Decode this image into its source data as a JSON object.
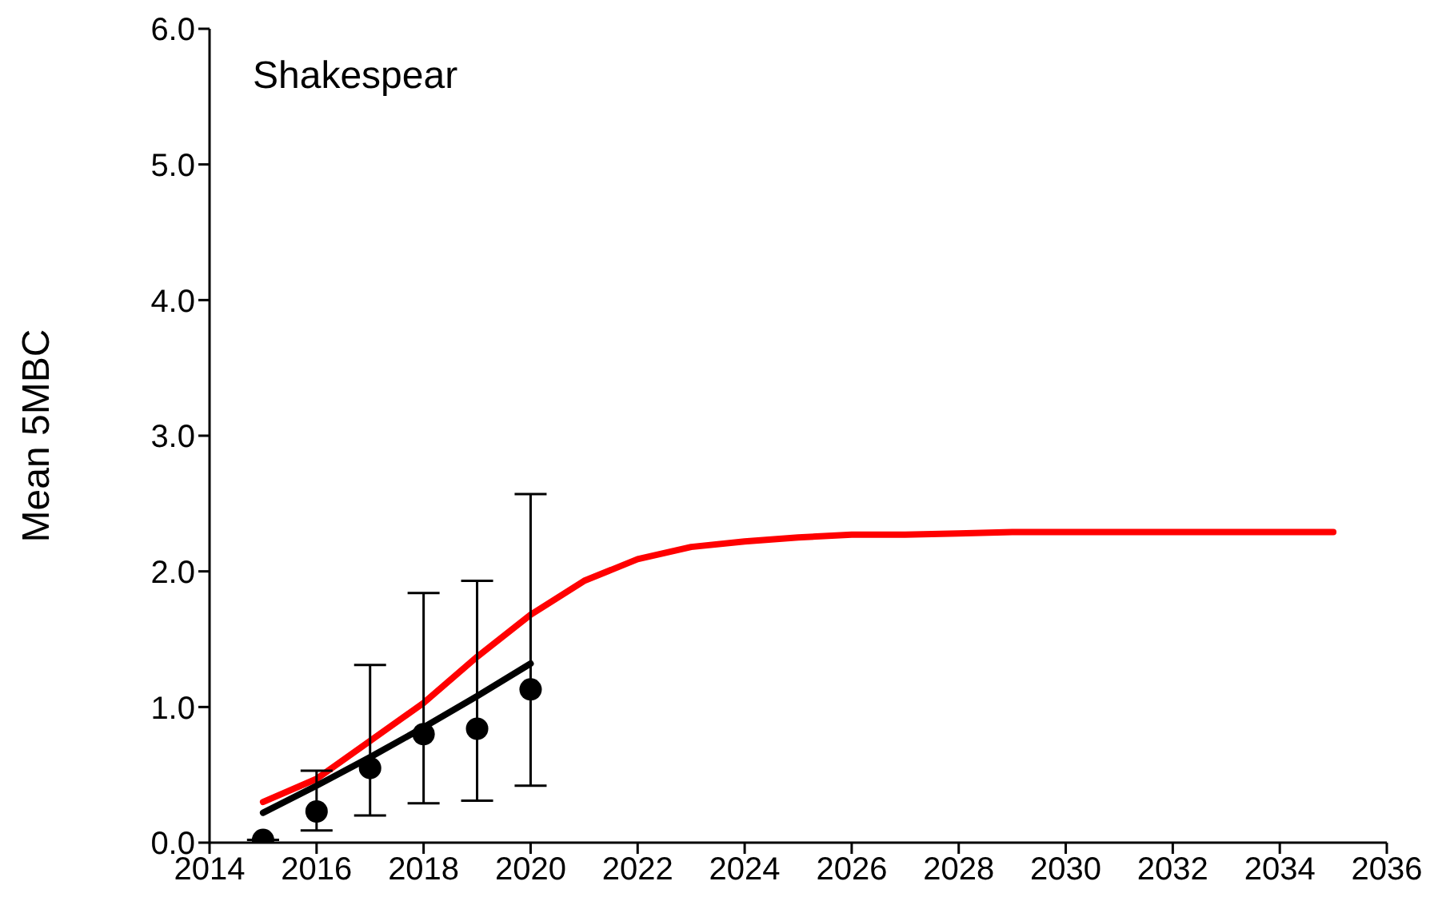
{
  "chart_data": {
    "type": "line",
    "ylabel": "Mean 5MBC",
    "annotations": [
      "Shakespear"
    ],
    "xlim": [
      2014,
      2036
    ],
    "xticks": [
      2014,
      2016,
      2018,
      2020,
      2022,
      2024,
      2026,
      2028,
      2030,
      2032,
      2034,
      2036
    ],
    "ylim": [
      0,
      6
    ],
    "yticks": [
      {
        "value": 0,
        "label": "0.0"
      },
      {
        "value": 1,
        "label": "1.0"
      },
      {
        "value": 2,
        "label": "2.0"
      },
      {
        "value": 3,
        "label": "3.0"
      },
      {
        "value": 4,
        "label": "4.0"
      },
      {
        "value": 5,
        "label": "5.0"
      },
      {
        "value": 6,
        "label": "6.0"
      }
    ],
    "grid": false,
    "legend": false,
    "line_style": "solid",
    "series": [
      {
        "color": "#ff0000",
        "marker": "none",
        "x": [
          2015,
          2016,
          2017,
          2018,
          2019,
          2020,
          2021,
          2022,
          2023,
          2024,
          2025,
          2026,
          2027,
          2028,
          2029,
          2030,
          2031,
          2032,
          2033,
          2034,
          2035
        ],
        "values": [
          0.3,
          0.47,
          0.75,
          1.03,
          1.37,
          1.68,
          1.93,
          2.09,
          2.18,
          2.22,
          2.25,
          2.27,
          2.27,
          2.28,
          2.29,
          2.29,
          2.29,
          2.29,
          2.29,
          2.29,
          2.29
        ]
      },
      {
        "color": "#000000",
        "marker": "none",
        "x": [
          2015,
          2016,
          2017,
          2018,
          2019,
          2020
        ],
        "values": [
          0.22,
          0.42,
          0.63,
          0.85,
          1.08,
          1.32
        ]
      },
      {
        "type": "scatter",
        "color": "#000000",
        "marker": "circle",
        "x": [
          2015,
          2016,
          2017,
          2018,
          2019,
          2020
        ],
        "values": [
          0.02,
          0.23,
          0.55,
          0.8,
          0.84,
          1.13
        ],
        "errors": [
          null,
          [
            0.09,
            0.53
          ],
          [
            0.2,
            1.31
          ],
          [
            0.29,
            1.84
          ],
          [
            0.31,
            1.93
          ],
          [
            0.42,
            2.57
          ]
        ]
      }
    ]
  }
}
